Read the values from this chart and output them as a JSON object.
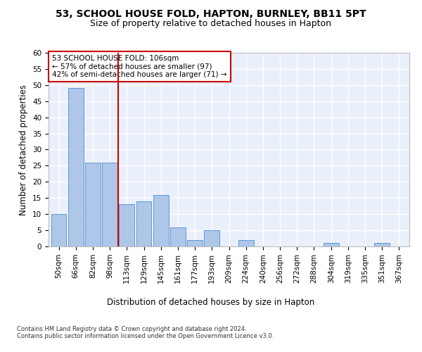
{
  "title1": "53, SCHOOL HOUSE FOLD, HAPTON, BURNLEY, BB11 5PT",
  "title2": "Size of property relative to detached houses in Hapton",
  "xlabel": "Distribution of detached houses by size in Hapton",
  "ylabel": "Number of detached properties",
  "bar_labels": [
    "50sqm",
    "66sqm",
    "82sqm",
    "98sqm",
    "113sqm",
    "129sqm",
    "145sqm",
    "161sqm",
    "177sqm",
    "193sqm",
    "209sqm",
    "224sqm",
    "240sqm",
    "256sqm",
    "272sqm",
    "288sqm",
    "304sqm",
    "319sqm",
    "335sqm",
    "351sqm",
    "367sqm"
  ],
  "bar_values": [
    10,
    49,
    26,
    26,
    13,
    14,
    16,
    6,
    2,
    5,
    0,
    2,
    0,
    0,
    0,
    0,
    1,
    0,
    0,
    1,
    0
  ],
  "bar_color": "#aec6e8",
  "bar_edgecolor": "#5b9bd5",
  "vline_x": 3.5,
  "vline_color": "#cc0000",
  "annotation_text": "53 SCHOOL HOUSE FOLD: 106sqm\n← 57% of detached houses are smaller (97)\n42% of semi-detached houses are larger (71) →",
  "annotation_box_edgecolor": "#cc0000",
  "ylim": [
    0,
    60
  ],
  "yticks": [
    0,
    5,
    10,
    15,
    20,
    25,
    30,
    35,
    40,
    45,
    50,
    55,
    60
  ],
  "footer": "Contains HM Land Registry data © Crown copyright and database right 2024.\nContains public sector information licensed under the Open Government Licence v3.0.",
  "background_color": "#eaf0fb",
  "grid_color": "#ffffff",
  "title1_fontsize": 10,
  "title2_fontsize": 9,
  "xlabel_fontsize": 8.5,
  "ylabel_fontsize": 8.5,
  "tick_fontsize": 7.5,
  "footer_fontsize": 6.0
}
